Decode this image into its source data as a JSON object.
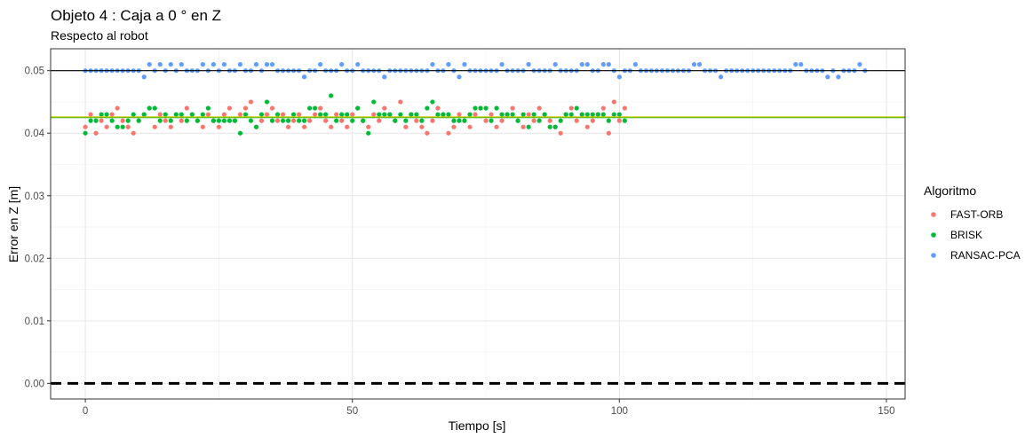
{
  "chart_data": {
    "type": "scatter",
    "title": "Objeto 4 : Caja a 0 ° en  Z",
    "subtitle": "Respecto al robot",
    "xlabel": "Tiempo [s]",
    "ylabel": "Error en Z [m]",
    "xlim": [
      -6.5,
      153.5
    ],
    "ylim": [
      -0.0025,
      0.0535
    ],
    "x_ticks": [
      0,
      50,
      100,
      150
    ],
    "x_tick_labels": [
      "0",
      "50",
      "100",
      "150"
    ],
    "y_ticks": [
      0,
      0.01,
      0.02,
      0.03,
      0.04,
      0.05
    ],
    "y_tick_labels": [
      "0.00",
      "0.01",
      "0.02",
      "0.03",
      "0.04",
      "0.05"
    ],
    "grid": true,
    "legend": {
      "title": "Algoritmo",
      "position": "right"
    },
    "reference_lines": [
      {
        "y": 0.05,
        "color": "#000000",
        "style": "solid"
      },
      {
        "y": 0.0425,
        "color": "#1fb31f",
        "style": "solid"
      },
      {
        "y": 0.0426,
        "color": "#c8c800",
        "style": "solid"
      },
      {
        "y": 0.0,
        "color": "#000000",
        "style": "dashed"
      }
    ],
    "series": [
      {
        "name": "FAST-ORB",
        "color": "#F8766D",
        "x": [
          0,
          1,
          2,
          3,
          4,
          5,
          6,
          7,
          8,
          9,
          10,
          11,
          12,
          13,
          14,
          15,
          16,
          17,
          18,
          19,
          20,
          21,
          22,
          23,
          24,
          25,
          26,
          27,
          28,
          29,
          30,
          31,
          32,
          33,
          34,
          35,
          36,
          37,
          38,
          39,
          40,
          41,
          42,
          43,
          44,
          45,
          46,
          47,
          48,
          49,
          50,
          51,
          52,
          53,
          54,
          55,
          56,
          57,
          58,
          59,
          60,
          61,
          62,
          63,
          64,
          65,
          66,
          67,
          68,
          69,
          70,
          71,
          72,
          73,
          74,
          75,
          76,
          77,
          78,
          79,
          80,
          81,
          82,
          83,
          84,
          85,
          86,
          87,
          88,
          89,
          90,
          91,
          92,
          93,
          94,
          95,
          96,
          97,
          98,
          99,
          100,
          101
        ],
        "values": [
          0.041,
          0.043,
          0.04,
          0.042,
          0.041,
          0.043,
          0.044,
          0.042,
          0.041,
          0.04,
          0.042,
          0.043,
          0.044,
          0.041,
          0.043,
          0.042,
          0.041,
          0.043,
          0.042,
          0.044,
          0.043,
          0.042,
          0.041,
          0.043,
          0.042,
          0.041,
          0.043,
          0.044,
          0.042,
          0.043,
          0.044,
          0.045,
          0.041,
          0.042,
          0.043,
          0.044,
          0.042,
          0.043,
          0.041,
          0.042,
          0.043,
          0.041,
          0.042,
          0.043,
          0.044,
          0.042,
          0.041,
          0.043,
          0.042,
          0.041,
          0.043,
          0.044,
          0.042,
          0.041,
          0.043,
          0.042,
          0.044,
          0.043,
          0.042,
          0.045,
          0.041,
          0.043,
          0.042,
          0.041,
          0.04,
          0.042,
          0.044,
          0.043,
          0.04,
          0.041,
          0.043,
          0.042,
          0.041,
          0.043,
          0.044,
          0.042,
          0.043,
          0.041,
          0.042,
          0.043,
          0.044,
          0.042,
          0.041,
          0.043,
          0.042,
          0.044,
          0.043,
          0.042,
          0.041,
          0.04,
          0.043,
          0.044,
          0.042,
          0.043,
          0.041,
          0.042,
          0.043,
          0.044,
          0.04,
          0.045,
          0.042,
          0.044
        ]
      },
      {
        "name": "BRISK",
        "color": "#00BA38",
        "x": [
          0,
          1,
          2,
          3,
          4,
          5,
          6,
          7,
          8,
          9,
          10,
          11,
          12,
          13,
          14,
          15,
          16,
          17,
          18,
          19,
          20,
          21,
          22,
          23,
          24,
          25,
          26,
          27,
          28,
          29,
          30,
          31,
          32,
          33,
          34,
          35,
          36,
          37,
          38,
          39,
          40,
          41,
          42,
          43,
          44,
          45,
          46,
          47,
          48,
          49,
          50,
          51,
          52,
          53,
          54,
          55,
          56,
          57,
          58,
          59,
          60,
          61,
          62,
          63,
          64,
          65,
          66,
          67,
          68,
          69,
          70,
          71,
          72,
          73,
          74,
          75,
          76,
          77,
          78,
          79,
          80,
          81,
          82,
          83,
          84,
          85,
          86,
          87,
          88,
          89,
          90,
          91,
          92,
          93,
          94,
          95,
          96,
          97,
          98,
          99,
          100,
          101
        ],
        "values": [
          0.04,
          0.042,
          0.042,
          0.043,
          0.043,
          0.042,
          0.041,
          0.041,
          0.042,
          0.043,
          0.042,
          0.043,
          0.044,
          0.044,
          0.042,
          0.043,
          0.042,
          0.043,
          0.043,
          0.042,
          0.043,
          0.042,
          0.043,
          0.044,
          0.042,
          0.042,
          0.042,
          0.042,
          0.042,
          0.04,
          0.043,
          0.042,
          0.041,
          0.043,
          0.045,
          0.042,
          0.043,
          0.042,
          0.042,
          0.043,
          0.042,
          0.042,
          0.044,
          0.044,
          0.043,
          0.043,
          0.046,
          0.042,
          0.043,
          0.043,
          0.042,
          0.044,
          0.042,
          0.04,
          0.045,
          0.043,
          0.043,
          0.043,
          0.042,
          0.043,
          0.042,
          0.043,
          0.043,
          0.042,
          0.044,
          0.045,
          0.043,
          0.043,
          0.043,
          0.042,
          0.042,
          0.042,
          0.043,
          0.044,
          0.044,
          0.044,
          0.042,
          0.044,
          0.043,
          0.043,
          0.043,
          0.042,
          0.043,
          0.041,
          0.043,
          0.042,
          0.043,
          0.041,
          0.041,
          0.042,
          0.043,
          0.043,
          0.044,
          0.043,
          0.043,
          0.043,
          0.043,
          0.043,
          0.042,
          0.043,
          0.043,
          0.042
        ]
      },
      {
        "name": "RANSAC-PCA",
        "color": "#619CFF",
        "x": [
          0,
          1,
          2,
          3,
          4,
          5,
          6,
          7,
          8,
          9,
          10,
          11,
          12,
          13,
          14,
          15,
          16,
          17,
          18,
          19,
          20,
          21,
          22,
          23,
          24,
          25,
          26,
          27,
          28,
          29,
          30,
          31,
          32,
          33,
          34,
          35,
          36,
          37,
          38,
          39,
          40,
          41,
          42,
          43,
          44,
          45,
          46,
          47,
          48,
          49,
          50,
          51,
          52,
          53,
          54,
          55,
          56,
          57,
          58,
          59,
          60,
          61,
          62,
          63,
          64,
          65,
          66,
          67,
          68,
          69,
          70,
          71,
          72,
          73,
          74,
          75,
          76,
          77,
          78,
          79,
          80,
          81,
          82,
          83,
          84,
          85,
          86,
          87,
          88,
          89,
          90,
          91,
          92,
          93,
          94,
          95,
          96,
          97,
          98,
          99,
          100,
          101,
          102,
          103,
          104,
          105,
          106,
          107,
          108,
          109,
          110,
          111,
          112,
          113,
          114,
          115,
          116,
          117,
          118,
          119,
          120,
          121,
          122,
          123,
          124,
          125,
          126,
          127,
          128,
          129,
          130,
          131,
          132,
          133,
          134,
          135,
          136,
          137,
          138,
          139,
          140,
          141,
          142,
          143,
          144,
          145,
          146
        ],
        "values": [
          0.05,
          0.05,
          0.05,
          0.05,
          0.05,
          0.05,
          0.05,
          0.05,
          0.05,
          0.05,
          0.05,
          0.05,
          0.05,
          0.05,
          0.05,
          0.05,
          0.05,
          0.05,
          0.05,
          0.05,
          0.05,
          0.05,
          0.05,
          0.05,
          0.05,
          0.05,
          0.05,
          0.05,
          0.05,
          0.05,
          0.05,
          0.05,
          0.05,
          0.05,
          0.05,
          0.05,
          0.05,
          0.05,
          0.05,
          0.05,
          0.05,
          0.05,
          0.05,
          0.05,
          0.05,
          0.05,
          0.05,
          0.05,
          0.05,
          0.05,
          0.05,
          0.05,
          0.05,
          0.05,
          0.05,
          0.05,
          0.05,
          0.05,
          0.05,
          0.05,
          0.05,
          0.05,
          0.05,
          0.05,
          0.05,
          0.05,
          0.05,
          0.05,
          0.05,
          0.05,
          0.05,
          0.05,
          0.05,
          0.05,
          0.05,
          0.05,
          0.05,
          0.05,
          0.05,
          0.05,
          0.05,
          0.05,
          0.05,
          0.05,
          0.05,
          0.05,
          0.05,
          0.05,
          0.05,
          0.05,
          0.05,
          0.05,
          0.05,
          0.05,
          0.05,
          0.05,
          0.05,
          0.05,
          0.05,
          0.05,
          0.05,
          0.05,
          0.05,
          0.05,
          0.05,
          0.05,
          0.05,
          0.05,
          0.05,
          0.05,
          0.05,
          0.05,
          0.05,
          0.05,
          0.05,
          0.05,
          0.05,
          0.05,
          0.05,
          0.05,
          0.05,
          0.05,
          0.05,
          0.05,
          0.05,
          0.05,
          0.05,
          0.05,
          0.05,
          0.05,
          0.05,
          0.05,
          0.05,
          0.05,
          0.05,
          0.05,
          0.05,
          0.05,
          0.05,
          0.05,
          0.05,
          0.05,
          0.05,
          0.05,
          0.05,
          0.05,
          0.05
        ],
        "deviations": [
          [
            11,
            0.049
          ],
          [
            12,
            0.051
          ],
          [
            14,
            0.051
          ],
          [
            16,
            0.051
          ],
          [
            18,
            0.051
          ],
          [
            22,
            0.051
          ],
          [
            24,
            0.051
          ],
          [
            26,
            0.051
          ],
          [
            29,
            0.051
          ],
          [
            32,
            0.051
          ],
          [
            34,
            0.051
          ],
          [
            35,
            0.051
          ],
          [
            41,
            0.049
          ],
          [
            44,
            0.051
          ],
          [
            48,
            0.051
          ],
          [
            51,
            0.051
          ],
          [
            56,
            0.049
          ],
          [
            65,
            0.051
          ],
          [
            68,
            0.051
          ],
          [
            70,
            0.049
          ],
          [
            71,
            0.051
          ],
          [
            78,
            0.051
          ],
          [
            83,
            0.051
          ],
          [
            88,
            0.051
          ],
          [
            93,
            0.051
          ],
          [
            94,
            0.051
          ],
          [
            97,
            0.051
          ],
          [
            98,
            0.051
          ],
          [
            100,
            0.049
          ],
          [
            103,
            0.051
          ],
          [
            114,
            0.051
          ],
          [
            115,
            0.051
          ],
          [
            119,
            0.049
          ],
          [
            133,
            0.051
          ],
          [
            134,
            0.051
          ],
          [
            139,
            0.049
          ],
          [
            141,
            0.049
          ],
          [
            145,
            0.051
          ]
        ]
      }
    ]
  }
}
